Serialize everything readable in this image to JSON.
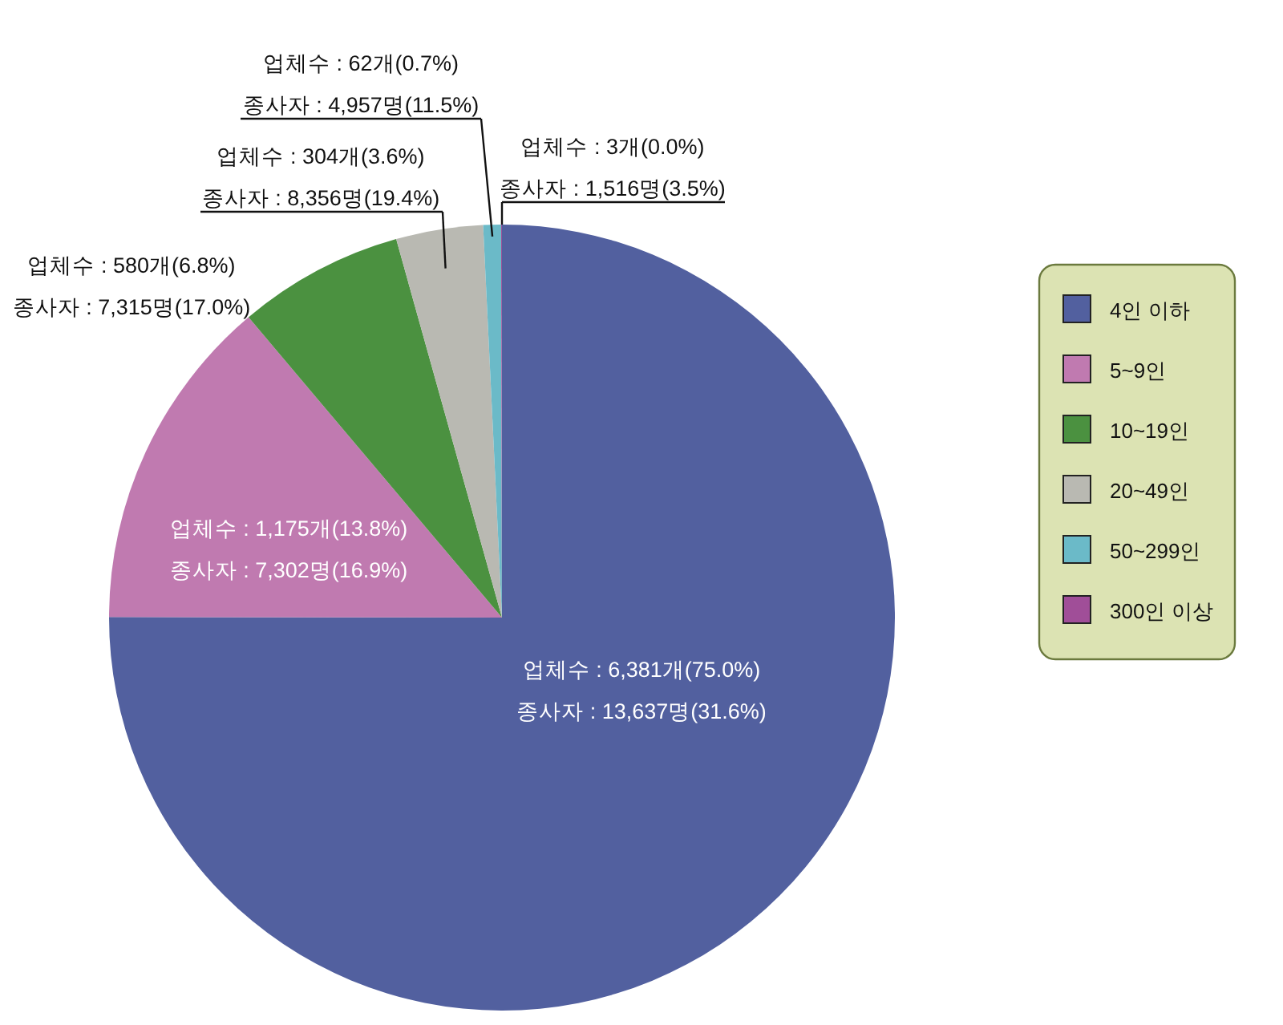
{
  "chart_data": {
    "type": "pie",
    "categories": [
      "4인 이하",
      "5~9인",
      "10~19인",
      "20~49인",
      "50~299인",
      "300인 이상"
    ],
    "values": [
      6381,
      1175,
      580,
      304,
      62,
      3
    ],
    "colors": [
      "#52609f",
      "#c07ab0",
      "#4b9140",
      "#b9b9b2",
      "#6bbac8",
      "#a04e98"
    ],
    "value_labels": [
      "업체수 : 6,381개(75.0%)\n종사자 : 13,637명(31.6%)",
      "업체수 : 1,175개(13.8%)\n종사자 : 7,302명(16.9%)",
      "업체수 : 580개(6.8%)\n종사자 : 7,315명(17.0%)",
      "업체수 : 304개(3.6%)\n종사자 : 8,356명(19.4%)",
      "업체수 : 62개(0.7%)\n종사자 : 4,957명(11.5%)",
      "업체수 : 3개(0.0%)\n종사자 : 1,516명(3.5%)"
    ],
    "legend": "right"
  }
}
